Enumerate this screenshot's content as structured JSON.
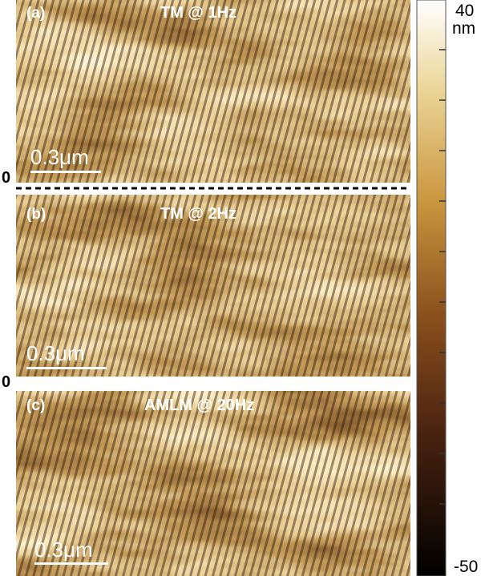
{
  "panels": [
    {
      "label": "(a)",
      "title": "TM @ 1Hz",
      "scale_bar": "0.3μm",
      "edge_label": "0"
    },
    {
      "label": "(b)",
      "title": "TM @ 2Hz",
      "scale_bar": "0.3μm",
      "edge_label": "0"
    },
    {
      "label": "(c)",
      "title": "AMLM @ 20Hz",
      "scale_bar": "0.3μm"
    }
  ],
  "colorbar": {
    "max": "40",
    "unit": "nm",
    "min": "-50"
  }
}
